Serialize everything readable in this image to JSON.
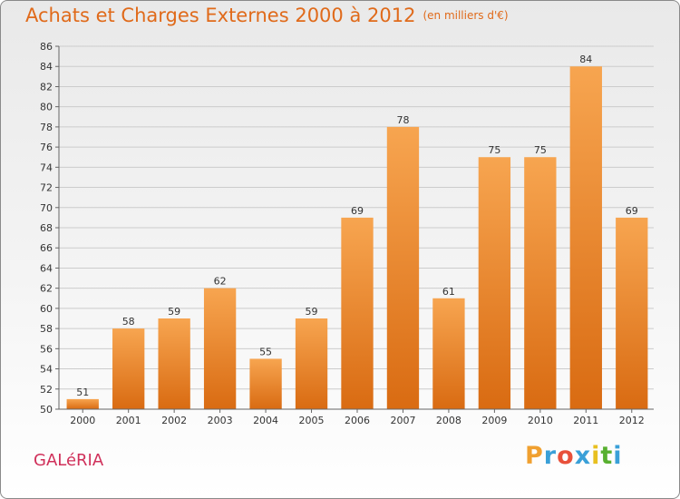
{
  "header": {
    "title": "Achats et Charges Externes 2000 à 2012",
    "subtitle": "(en milliers d'€)"
  },
  "commune": "GALéRIA",
  "logo": {
    "letters": [
      "P",
      "r",
      "o",
      "x",
      "i",
      "t",
      "i"
    ],
    "colors": [
      "#f0a030",
      "#3aa0d8",
      "#e8503a",
      "#3aa0d8",
      "#e8c020",
      "#58b030",
      "#3aa0d8"
    ]
  },
  "chart_data": {
    "type": "bar",
    "categories": [
      "2000",
      "2001",
      "2002",
      "2003",
      "2004",
      "2005",
      "2006",
      "2007",
      "2008",
      "2009",
      "2010",
      "2011",
      "2012"
    ],
    "values": [
      51,
      58,
      59,
      62,
      55,
      59,
      69,
      78,
      61,
      75,
      75,
      84,
      69
    ],
    "title": "Achats et Charges Externes 2000 à 2012",
    "ylim": [
      50,
      86
    ],
    "yticks": [
      50,
      52,
      54,
      56,
      58,
      60,
      62,
      64,
      66,
      68,
      70,
      72,
      74,
      76,
      78,
      80,
      82,
      84,
      86
    ],
    "grid": true,
    "colors": {
      "bar_top": "#f7a550",
      "bar_bottom": "#d96b12",
      "grid": "#cccccc"
    }
  }
}
